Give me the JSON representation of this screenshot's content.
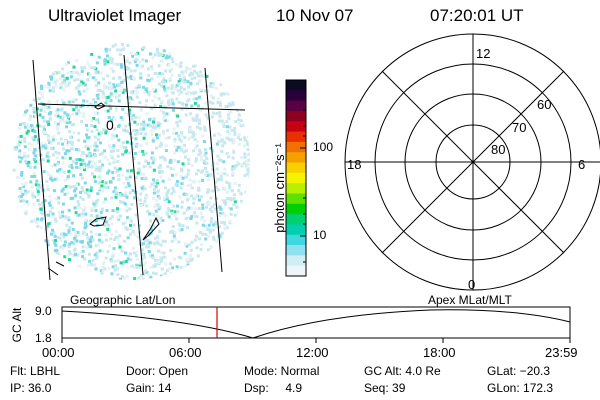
{
  "header": {
    "instrument": "Ultraviolet Imager",
    "date": "10 Nov 07",
    "time": "07:20:01 UT"
  },
  "colorbar": {
    "unit_label": "photon cm⁻²s⁻¹",
    "ticks": [
      "100",
      "10"
    ],
    "colors": [
      "#0a0a22",
      "#2a003a",
      "#5a0044",
      "#8c0020",
      "#c80014",
      "#e83000",
      "#f07000",
      "#f4a000",
      "#f8d000",
      "#f4f400",
      "#b8f000",
      "#60e000",
      "#00d000",
      "#00d070",
      "#00d0b0",
      "#40d8e0",
      "#90e0f0",
      "#d0eef4",
      "#eef6f8"
    ]
  },
  "polar_plot": {
    "lat_labels": [
      "60",
      "70",
      "80"
    ],
    "mlt_labels": {
      "top": "12",
      "left": "18",
      "right": "6",
      "bottom": "0"
    }
  },
  "timeline": {
    "ylabel": "GC Alt",
    "ytick_top": "9.0",
    "ytick_bottom": "1.8",
    "left_caption": "Geographic Lat/Lon",
    "right_caption": "Apex MLat/MLT",
    "xticks": [
      "00:00",
      "06:00",
      "12:00",
      "18:00",
      "23:59"
    ],
    "marker_color": "#e00000"
  },
  "status": {
    "filter": "Flt: LBHL",
    "door": "Door: Open",
    "mode": "Mode: Normal",
    "gc_alt": "GC Alt: 4.0 Re",
    "glat": "GLat: −20.3",
    "ip": "IP: 36.0",
    "gain": "Gain: 14",
    "dsp": "Dsp:     4.9",
    "seq": "Seq: 39",
    "glon": "GLon: 172.3"
  }
}
